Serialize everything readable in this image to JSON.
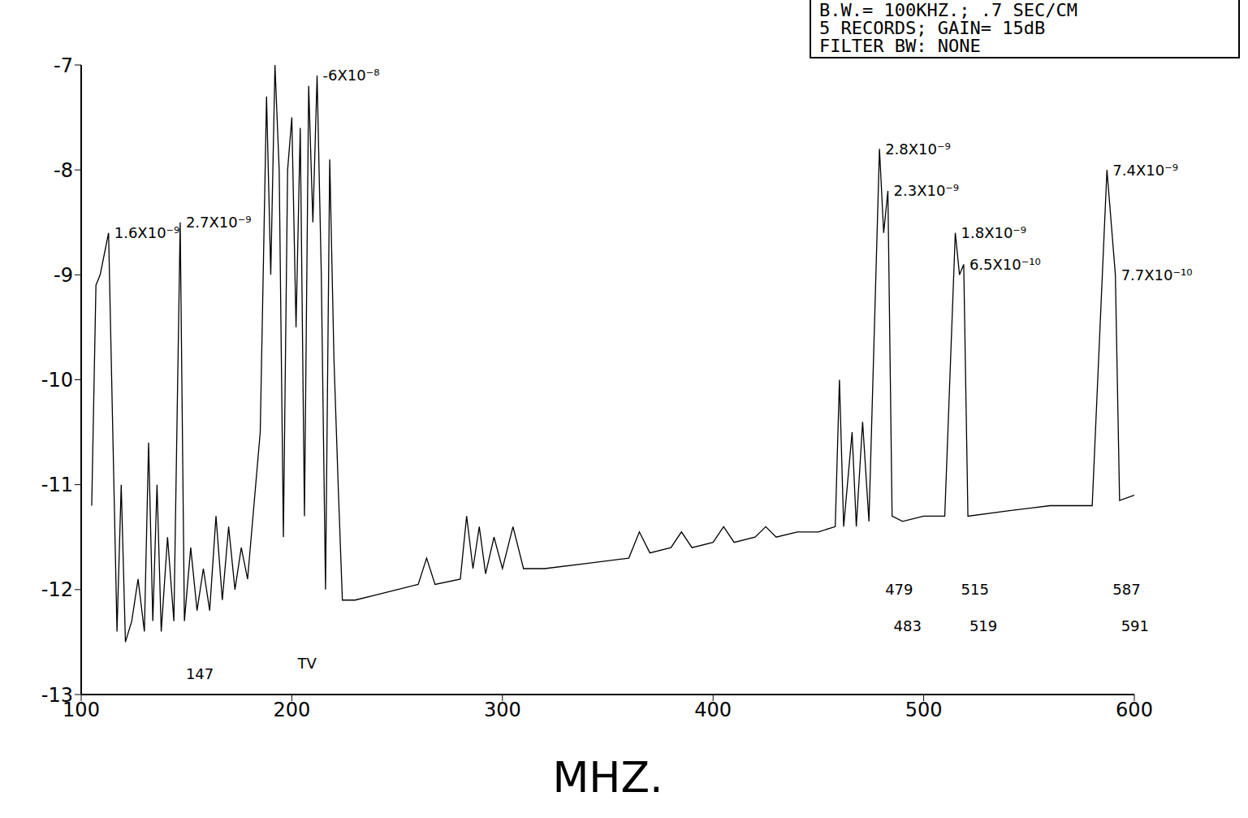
{
  "chart_data": {
    "type": "line",
    "header": [
      "B.W.= 100KHZ.; .7 SEC/CM",
      "5 RECORDS; GAIN= 15dB",
      "FILTER BW: NONE"
    ],
    "x_label": "MHZ.",
    "color": "#000000",
    "xlim": [
      100,
      600
    ],
    "xticks": [
      100,
      200,
      300,
      400,
      500,
      600
    ],
    "ylim": [
      -13,
      -7
    ],
    "yticks": [
      -13,
      -12,
      -11,
      -10,
      -9,
      -8,
      -7
    ],
    "grid": false,
    "x": [
      105,
      107,
      109,
      111,
      113,
      115,
      117,
      119,
      121,
      124,
      127,
      130,
      132,
      134,
      136,
      138,
      141,
      144,
      147,
      149,
      152,
      155,
      158,
      161,
      164,
      167,
      170,
      173,
      176,
      179,
      182,
      185,
      188,
      190,
      192,
      194,
      196,
      198,
      200,
      202,
      204,
      206,
      208,
      210,
      212,
      214,
      216,
      218,
      220,
      222,
      224,
      230,
      240,
      250,
      260,
      264,
      268,
      280,
      283,
      286,
      289,
      292,
      296,
      300,
      305,
      310,
      320,
      340,
      360,
      365,
      370,
      380,
      385,
      390,
      400,
      405,
      410,
      420,
      425,
      430,
      440,
      450,
      458,
      460,
      462,
      466,
      468,
      471,
      474,
      479,
      481,
      483,
      485,
      490,
      500,
      510,
      515,
      517,
      519,
      521,
      540,
      560,
      580,
      587,
      589,
      591,
      593,
      600
    ],
    "values": [
      -11.2,
      -9.1,
      -9.0,
      -8.8,
      -8.6,
      -10.5,
      -12.4,
      -11.0,
      -12.5,
      -12.3,
      -11.9,
      -12.4,
      -10.6,
      -12.3,
      -11.0,
      -12.4,
      -11.5,
      -12.3,
      -8.5,
      -12.3,
      -11.6,
      -12.2,
      -11.8,
      -12.2,
      -11.3,
      -12.1,
      -11.4,
      -12.0,
      -11.6,
      -11.9,
      -11.2,
      -10.5,
      -7.3,
      -9.0,
      -7.0,
      -8.0,
      -11.5,
      -8.0,
      -7.5,
      -9.5,
      -7.6,
      -11.3,
      -7.2,
      -8.5,
      -7.1,
      -9.0,
      -12.0,
      -7.9,
      -9.8,
      -11.0,
      -12.1,
      -12.1,
      -12.05,
      -12.0,
      -11.95,
      -11.7,
      -11.95,
      -11.9,
      -11.3,
      -11.8,
      -11.4,
      -11.85,
      -11.5,
      -11.8,
      -11.4,
      -11.8,
      -11.8,
      -11.75,
      -11.7,
      -11.45,
      -11.65,
      -11.6,
      -11.45,
      -11.6,
      -11.55,
      -11.4,
      -11.55,
      -11.5,
      -11.4,
      -11.5,
      -11.45,
      -11.45,
      -11.4,
      -10.0,
      -11.4,
      -10.5,
      -11.4,
      -10.4,
      -11.35,
      -7.8,
      -8.6,
      -8.2,
      -11.3,
      -11.35,
      -11.3,
      -11.3,
      -8.6,
      -9.0,
      -8.9,
      -11.3,
      -11.25,
      -11.2,
      -11.2,
      -8.0,
      -8.5,
      -9.0,
      -11.15,
      -11.1
    ],
    "annotations": [
      {
        "text": "1.6X10⁻⁹",
        "x": 113,
        "y": -8.6
      },
      {
        "text": "2.7X10⁻⁹",
        "x": 147,
        "y": -8.5
      },
      {
        "text": "-6X10⁻⁸",
        "x": 212,
        "y": -7.1
      },
      {
        "text": "2.8X10⁻⁹",
        "x": 479,
        "y": -7.8
      },
      {
        "text": "2.3X10⁻⁹",
        "x": 483,
        "y": -8.2
      },
      {
        "text": "1.8X10⁻⁹",
        "x": 515,
        "y": -8.6
      },
      {
        "text": "6.5X10⁻¹⁰",
        "x": 519,
        "y": -8.9
      },
      {
        "text": "7.4X10⁻⁹",
        "x": 587,
        "y": -8.0
      },
      {
        "text": "7.7X10⁻¹⁰",
        "x": 591,
        "y": -9.0
      },
      {
        "text": "147",
        "x": 147,
        "y": -12.8
      },
      {
        "text": "TV",
        "x": 200,
        "y": -12.7
      },
      {
        "text": "479",
        "x": 479,
        "y": -12.0
      },
      {
        "text": "483",
        "x": 483,
        "y": -12.35
      },
      {
        "text": "515",
        "x": 515,
        "y": -12.0
      },
      {
        "text": "519",
        "x": 519,
        "y": -12.35
      },
      {
        "text": "587",
        "x": 587,
        "y": -12.0
      },
      {
        "text": "591",
        "x": 591,
        "y": -12.35
      }
    ]
  }
}
